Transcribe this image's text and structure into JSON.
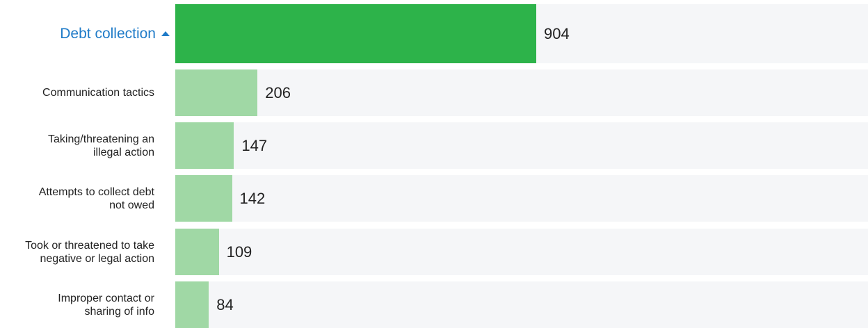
{
  "chart_data": {
    "type": "bar",
    "orientation": "horizontal",
    "categories": [
      "Debt collection",
      "Communication tactics",
      "Taking/threatening an\nillegal action",
      "Attempts to collect debt\nnot owed",
      "Took or threatened to take\nnegative or legal action",
      "Improper contact or\nsharing of info"
    ],
    "values": [
      904,
      206,
      147,
      142,
      109,
      84
    ],
    "colors": [
      "#2db34a",
      "#a0d8a5",
      "#a0d8a5",
      "#a0d8a5",
      "#a0d8a5",
      "#a0d8a5"
    ]
  }
}
